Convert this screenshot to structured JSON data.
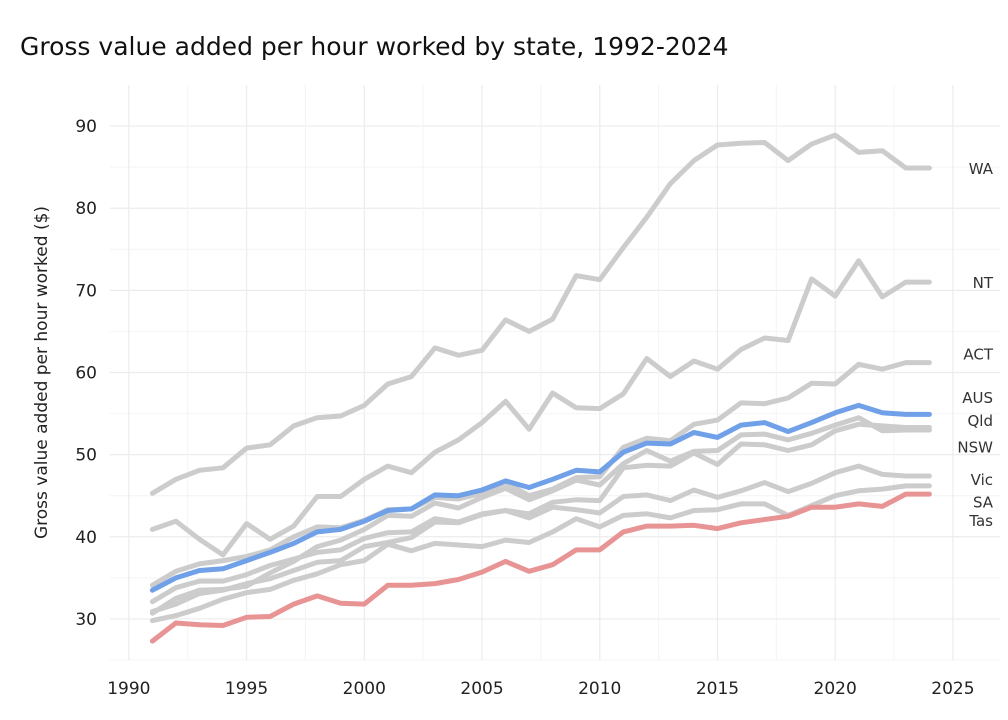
{
  "chart_data": {
    "type": "line",
    "title": "Gross value added per hour worked by state, 1992-2024",
    "xlabel": "",
    "ylabel": "Gross value added per hour worked ($)",
    "xlim": [
      1989.2,
      2027
    ],
    "ylim": [
      25,
      95
    ],
    "xticks": [
      1990,
      1995,
      2000,
      2005,
      2010,
      2015,
      2020,
      2025
    ],
    "yticks": [
      30,
      40,
      50,
      60,
      70,
      80,
      90
    ],
    "grid": true,
    "legend": "direct labels at line ends",
    "x": [
      1991,
      1992,
      1993,
      1994,
      1995,
      1996,
      1997,
      1998,
      1999,
      2000,
      2001,
      2002,
      2003,
      2004,
      2005,
      2006,
      2007,
      2008,
      2009,
      2010,
      2011,
      2012,
      2013,
      2014,
      2015,
      2016,
      2017,
      2018,
      2019,
      2020,
      2021,
      2022,
      2023,
      2024
    ],
    "series": [
      {
        "name": "WA",
        "color": "#cccccc",
        "values": [
          45.3,
          47.0,
          48.1,
          48.4,
          50.8,
          51.2,
          53.5,
          54.5,
          54.7,
          56.0,
          58.6,
          59.5,
          63.0,
          62.1,
          62.7,
          66.4,
          65.0,
          66.5,
          71.8,
          71.3,
          75.2,
          78.9,
          83.0,
          85.8,
          87.7,
          87.9,
          88.0,
          85.8,
          87.8,
          88.9,
          86.8,
          87.0,
          84.9,
          84.9
        ]
      },
      {
        "name": "NT",
        "color": "#cccccc",
        "values": [
          40.9,
          41.9,
          39.7,
          37.8,
          41.6,
          39.7,
          41.3,
          44.9,
          44.9,
          47.0,
          48.6,
          47.8,
          50.3,
          51.8,
          53.9,
          56.5,
          53.1,
          57.5,
          55.7,
          55.6,
          57.4,
          61.7,
          59.5,
          61.4,
          60.4,
          62.8,
          64.2,
          63.9,
          71.4,
          69.3,
          73.6,
          69.2,
          71.0,
          71.0
        ]
      },
      {
        "name": "ACT",
        "color": "#cccccc",
        "values": [
          34.1,
          35.8,
          36.7,
          37.1,
          37.6,
          38.4,
          40.0,
          41.2,
          41.1,
          42.0,
          43.3,
          43.4,
          44.8,
          44.6,
          45.3,
          46.6,
          45.0,
          45.8,
          47.2,
          47.3,
          50.9,
          52.0,
          51.7,
          53.7,
          54.2,
          56.3,
          56.2,
          56.9,
          58.7,
          58.6,
          61.0,
          60.4,
          61.2,
          61.2
        ]
      },
      {
        "name": "Qld",
        "color": "#cccccc",
        "values": [
          30.7,
          32.5,
          33.5,
          33.6,
          34.0,
          35.6,
          37.0,
          38.8,
          39.6,
          40.9,
          42.6,
          42.5,
          44.1,
          43.5,
          44.8,
          45.9,
          44.5,
          45.6,
          46.9,
          46.3,
          48.9,
          50.5,
          49.2,
          50.4,
          50.5,
          52.4,
          52.5,
          51.8,
          52.6,
          53.6,
          54.5,
          52.9,
          53.0,
          53.0
        ]
      },
      {
        "name": "NSW",
        "color": "#cccccc",
        "values": [
          32.1,
          33.8,
          34.6,
          34.6,
          35.4,
          36.5,
          37.3,
          38.1,
          38.4,
          39.8,
          40.5,
          40.6,
          42.2,
          41.8,
          42.8,
          43.2,
          42.8,
          44.2,
          44.5,
          44.4,
          48.4,
          48.7,
          48.6,
          50.2,
          48.8,
          51.3,
          51.2,
          50.5,
          51.2,
          52.9,
          53.7,
          53.5,
          53.3,
          53.3
        ]
      },
      {
        "name": "Vic",
        "color": "#cccccc",
        "values": [
          30.9,
          31.8,
          33.1,
          33.5,
          34.3,
          34.9,
          35.9,
          36.9,
          37.1,
          38.8,
          39.3,
          39.9,
          41.8,
          41.7,
          42.7,
          43.2,
          42.3,
          43.6,
          43.3,
          42.9,
          44.9,
          45.1,
          44.4,
          45.7,
          44.8,
          45.6,
          46.6,
          45.5,
          46.5,
          47.8,
          48.6,
          47.6,
          47.4,
          47.4
        ]
      },
      {
        "name": "SA",
        "color": "#cccccc",
        "values": [
          29.8,
          30.4,
          31.3,
          32.4,
          33.2,
          33.6,
          34.7,
          35.5,
          36.6,
          37.1,
          39.1,
          38.3,
          39.2,
          39.0,
          38.8,
          39.6,
          39.3,
          40.6,
          42.2,
          41.2,
          42.6,
          42.8,
          42.3,
          43.2,
          43.3,
          44.0,
          44.0,
          42.6,
          43.8,
          45.0,
          45.6,
          45.8,
          46.2,
          46.2
        ]
      },
      {
        "name": "AUS",
        "color": "#6fa0e8",
        "values": [
          33.5,
          35.0,
          35.9,
          36.1,
          37.1,
          38.1,
          39.2,
          40.6,
          40.9,
          41.9,
          43.2,
          43.4,
          45.1,
          45.0,
          45.7,
          46.8,
          46.0,
          47.0,
          48.1,
          47.9,
          50.3,
          51.4,
          51.3,
          52.7,
          52.1,
          53.6,
          53.9,
          52.8,
          53.9,
          55.1,
          56.0,
          55.1,
          54.9,
          54.9
        ]
      },
      {
        "name": "Tas",
        "color": "#e89494",
        "values": [
          27.3,
          29.5,
          29.3,
          29.2,
          30.2,
          30.3,
          31.8,
          32.8,
          31.9,
          31.8,
          34.1,
          34.1,
          34.3,
          34.8,
          35.7,
          37.0,
          35.8,
          36.6,
          38.4,
          38.4,
          40.6,
          41.3,
          41.3,
          41.4,
          41.0,
          41.7,
          42.1,
          42.5,
          43.6,
          43.6,
          44.0,
          43.7,
          45.2,
          45.2
        ]
      }
    ],
    "labels": [
      {
        "name": "WA",
        "text": "WA",
        "y": 84.8
      },
      {
        "name": "NT",
        "text": "NT",
        "y": 70.9
      },
      {
        "name": "ACT",
        "text": "ACT",
        "y": 62.2
      },
      {
        "name": "AUS",
        "text": "AUS",
        "y": 56.9
      },
      {
        "name": "Qld",
        "text": "Qld",
        "y": 54.1
      },
      {
        "name": "NSW",
        "text": "NSW",
        "y": 50.9
      },
      {
        "name": "Vic",
        "text": "Vic",
        "y": 46.9
      },
      {
        "name": "SA",
        "text": "SA",
        "y": 44.2
      },
      {
        "name": "Tas",
        "text": "Tas",
        "y": 41.9
      }
    ]
  }
}
